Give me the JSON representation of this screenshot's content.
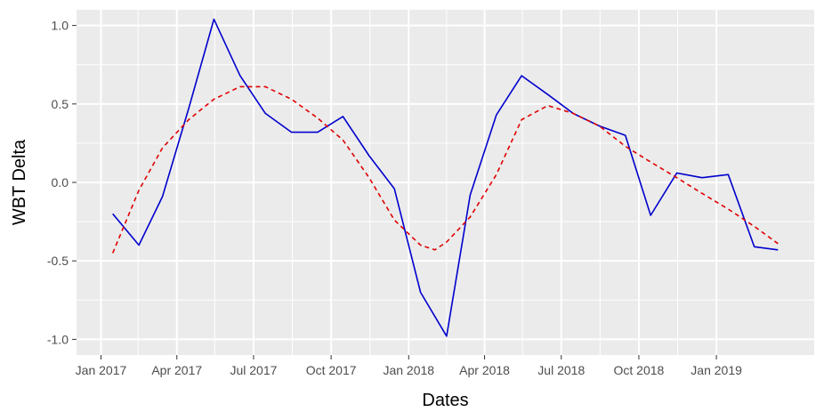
{
  "chart_data": {
    "type": "line",
    "xlabel": "Dates",
    "ylabel": "WBT Delta",
    "x_axis_type": "date",
    "xlim": [
      "2016-12-03",
      "2019-04-27"
    ],
    "ylim": [
      -1.1,
      1.1
    ],
    "grid": true,
    "panel_background": "#ebebeb",
    "grid_color": "#ffffff",
    "x_ticks": [
      {
        "date": "2017-01-01",
        "label": "Jan 2017"
      },
      {
        "date": "2017-04-01",
        "label": "Apr 2017"
      },
      {
        "date": "2017-07-01",
        "label": "Jul 2017"
      },
      {
        "date": "2017-10-01",
        "label": "Oct 2017"
      },
      {
        "date": "2018-01-01",
        "label": "Jan 2018"
      },
      {
        "date": "2018-04-01",
        "label": "Apr 2018"
      },
      {
        "date": "2018-07-01",
        "label": "Jul 2018"
      },
      {
        "date": "2018-10-01",
        "label": "Oct 2018"
      },
      {
        "date": "2019-01-01",
        "label": "Jan 2019"
      }
    ],
    "x_minor_ticks": [
      "2017-02-14",
      "2017-05-16",
      "2017-08-16",
      "2017-11-16",
      "2018-02-15",
      "2018-05-16",
      "2018-08-16",
      "2018-11-16"
    ],
    "y_ticks": [
      {
        "value": 1.0,
        "label": "1.0"
      },
      {
        "value": 0.5,
        "label": "0.5"
      },
      {
        "value": 0.0,
        "label": "0.0"
      },
      {
        "value": -0.5,
        "label": "-0.5"
      },
      {
        "value": -1.0,
        "label": "-1.0"
      }
    ],
    "y_minor_ticks": [
      0.75,
      0.25,
      -0.25,
      -0.75
    ],
    "series": [
      {
        "color": "#0000cd",
        "style": "solid",
        "points": [
          {
            "x": "2017-01-15",
            "y": -0.2
          },
          {
            "x": "2017-02-15",
            "y": -0.4
          },
          {
            "x": "2017-03-15",
            "y": -0.09
          },
          {
            "x": "2017-04-15",
            "y": 0.47
          },
          {
            "x": "2017-05-15",
            "y": 1.04
          },
          {
            "x": "2017-06-15",
            "y": 0.68
          },
          {
            "x": "2017-07-15",
            "y": 0.44
          },
          {
            "x": "2017-08-15",
            "y": 0.32
          },
          {
            "x": "2017-09-15",
            "y": 0.32
          },
          {
            "x": "2017-10-15",
            "y": 0.42
          },
          {
            "x": "2017-11-15",
            "y": 0.17
          },
          {
            "x": "2017-12-15",
            "y": -0.04
          },
          {
            "x": "2018-01-15",
            "y": -0.7
          },
          {
            "x": "2018-02-15",
            "y": -0.98
          },
          {
            "x": "2018-03-15",
            "y": -0.08
          },
          {
            "x": "2018-04-15",
            "y": 0.43
          },
          {
            "x": "2018-05-15",
            "y": 0.68
          },
          {
            "x": "2018-06-15",
            "y": 0.56
          },
          {
            "x": "2018-07-15",
            "y": 0.44
          },
          {
            "x": "2018-08-15",
            "y": 0.36
          },
          {
            "x": "2018-09-15",
            "y": 0.3
          },
          {
            "x": "2018-10-15",
            "y": -0.21
          },
          {
            "x": "2018-11-15",
            "y": 0.06
          },
          {
            "x": "2018-12-15",
            "y": 0.03
          },
          {
            "x": "2019-01-15",
            "y": 0.05
          },
          {
            "x": "2019-02-15",
            "y": -0.41
          },
          {
            "x": "2019-03-15",
            "y": -0.43
          }
        ]
      },
      {
        "color": "#e00000",
        "style": "dashed",
        "points": [
          {
            "x": "2017-01-15",
            "y": -0.45
          },
          {
            "x": "2017-02-15",
            "y": -0.05
          },
          {
            "x": "2017-03-15",
            "y": 0.22
          },
          {
            "x": "2017-04-15",
            "y": 0.4
          },
          {
            "x": "2017-05-15",
            "y": 0.53
          },
          {
            "x": "2017-06-15",
            "y": 0.61
          },
          {
            "x": "2017-07-15",
            "y": 0.61
          },
          {
            "x": "2017-08-15",
            "y": 0.53
          },
          {
            "x": "2017-09-15",
            "y": 0.41
          },
          {
            "x": "2017-10-15",
            "y": 0.27
          },
          {
            "x": "2017-11-15",
            "y": 0.03
          },
          {
            "x": "2017-12-15",
            "y": -0.24
          },
          {
            "x": "2018-01-15",
            "y": -0.4
          },
          {
            "x": "2018-02-01",
            "y": -0.43
          },
          {
            "x": "2018-02-15",
            "y": -0.38
          },
          {
            "x": "2018-03-15",
            "y": -0.22
          },
          {
            "x": "2018-04-15",
            "y": 0.05
          },
          {
            "x": "2018-05-15",
            "y": 0.4
          },
          {
            "x": "2018-06-15",
            "y": 0.49
          },
          {
            "x": "2018-07-15",
            "y": 0.44
          },
          {
            "x": "2018-08-15",
            "y": 0.36
          },
          {
            "x": "2018-09-15",
            "y": 0.23
          },
          {
            "x": "2018-10-15",
            "y": 0.13
          },
          {
            "x": "2018-11-15",
            "y": 0.03
          },
          {
            "x": "2018-12-15",
            "y": -0.07
          },
          {
            "x": "2019-01-15",
            "y": -0.17
          },
          {
            "x": "2019-02-15",
            "y": -0.28
          },
          {
            "x": "2019-03-15",
            "y": -0.39
          }
        ]
      }
    ]
  }
}
